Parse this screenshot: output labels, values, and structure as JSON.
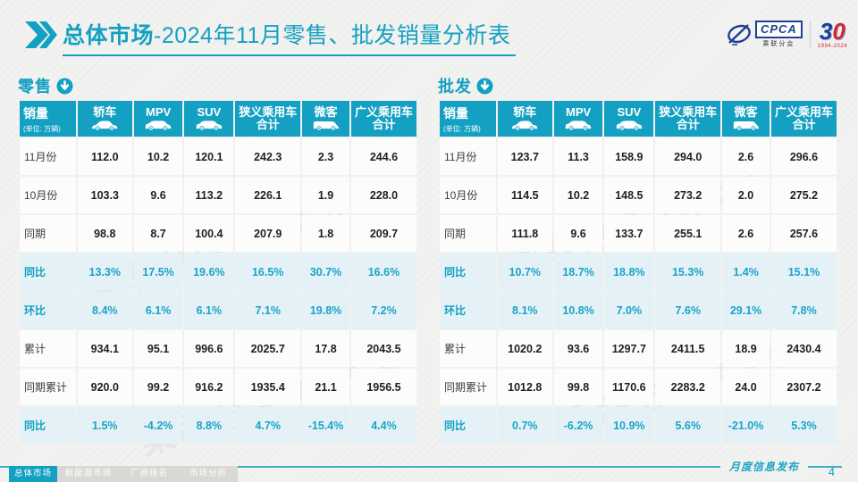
{
  "page": {
    "title_prefix": "总体市场",
    "title_rest": "-2024年11月零售、批发销量分析表",
    "footer_note": "月度信息发布",
    "page_number": "4",
    "watermark": "乘联分会 CPCA"
  },
  "logos": {
    "cpca_text": "CPCA",
    "cpca_sub": "乘联分会",
    "anniversary_3": "3",
    "anniversary_0": "0",
    "anniversary_years": "1994-2024"
  },
  "colors": {
    "accent_teal": "#14A0C2",
    "highlight_row_bg": "#E4F2F8",
    "logo_blue": "#1D3F94",
    "logo_red": "#D6252C"
  },
  "columns": {
    "first_header_title": "销量",
    "first_header_unit": "(单位: 万辆)",
    "headers": [
      {
        "label": "轿车",
        "icon": "sedan-icon"
      },
      {
        "label": "MPV",
        "icon": "mpv-icon"
      },
      {
        "label": "SUV",
        "icon": "suv-icon"
      },
      {
        "label": "狭义乘用车",
        "label2": "合计"
      },
      {
        "label": "微客",
        "icon": "minivan-icon"
      },
      {
        "label": "广义乘用车",
        "label2": "合计"
      }
    ]
  },
  "tables": [
    {
      "title": "零售",
      "rows": [
        {
          "label": "11月份",
          "highlight": false,
          "values": [
            "112.0",
            "10.2",
            "120.1",
            "242.3",
            "2.3",
            "244.6"
          ]
        },
        {
          "label": "10月份",
          "highlight": false,
          "values": [
            "103.3",
            "9.6",
            "113.2",
            "226.1",
            "1.9",
            "228.0"
          ]
        },
        {
          "label": "同期",
          "highlight": false,
          "values": [
            "98.8",
            "8.7",
            "100.4",
            "207.9",
            "1.8",
            "209.7"
          ]
        },
        {
          "label": "同比",
          "highlight": true,
          "values": [
            "13.3%",
            "17.5%",
            "19.6%",
            "16.5%",
            "30.7%",
            "16.6%"
          ]
        },
        {
          "label": "环比",
          "highlight": true,
          "values": [
            "8.4%",
            "6.1%",
            "6.1%",
            "7.1%",
            "19.8%",
            "7.2%"
          ]
        },
        {
          "label": "累计",
          "highlight": false,
          "values": [
            "934.1",
            "95.1",
            "996.6",
            "2025.7",
            "17.8",
            "2043.5"
          ]
        },
        {
          "label": "同期累计",
          "highlight": false,
          "values": [
            "920.0",
            "99.2",
            "916.2",
            "1935.4",
            "21.1",
            "1956.5"
          ]
        },
        {
          "label": "同比",
          "highlight": true,
          "values": [
            "1.5%",
            "-4.2%",
            "8.8%",
            "4.7%",
            "-15.4%",
            "4.4%"
          ]
        }
      ]
    },
    {
      "title": "批发",
      "rows": [
        {
          "label": "11月份",
          "highlight": false,
          "values": [
            "123.7",
            "11.3",
            "158.9",
            "294.0",
            "2.6",
            "296.6"
          ]
        },
        {
          "label": "10月份",
          "highlight": false,
          "values": [
            "114.5",
            "10.2",
            "148.5",
            "273.2",
            "2.0",
            "275.2"
          ]
        },
        {
          "label": "同期",
          "highlight": false,
          "values": [
            "111.8",
            "9.6",
            "133.7",
            "255.1",
            "2.6",
            "257.6"
          ]
        },
        {
          "label": "同比",
          "highlight": true,
          "values": [
            "10.7%",
            "18.7%",
            "18.8%",
            "15.3%",
            "1.4%",
            "15.1%"
          ]
        },
        {
          "label": "环比",
          "highlight": true,
          "values": [
            "8.1%",
            "10.8%",
            "7.0%",
            "7.6%",
            "29.1%",
            "7.8%"
          ]
        },
        {
          "label": "累计",
          "highlight": false,
          "values": [
            "1020.2",
            "93.6",
            "1297.7",
            "2411.5",
            "18.9",
            "2430.4"
          ]
        },
        {
          "label": "同期累计",
          "highlight": false,
          "values": [
            "1012.8",
            "99.8",
            "1170.6",
            "2283.2",
            "24.0",
            "2307.2"
          ]
        },
        {
          "label": "同比",
          "highlight": true,
          "values": [
            "0.7%",
            "-6.2%",
            "10.9%",
            "5.6%",
            "-21.0%",
            "5.3%"
          ]
        }
      ]
    }
  ],
  "footer_tabs": [
    {
      "label": "总体市场",
      "active": true
    },
    {
      "label": "新能源市场",
      "active": false
    },
    {
      "label": "厂商排名",
      "active": false
    },
    {
      "label": "市场分析",
      "active": false
    }
  ]
}
